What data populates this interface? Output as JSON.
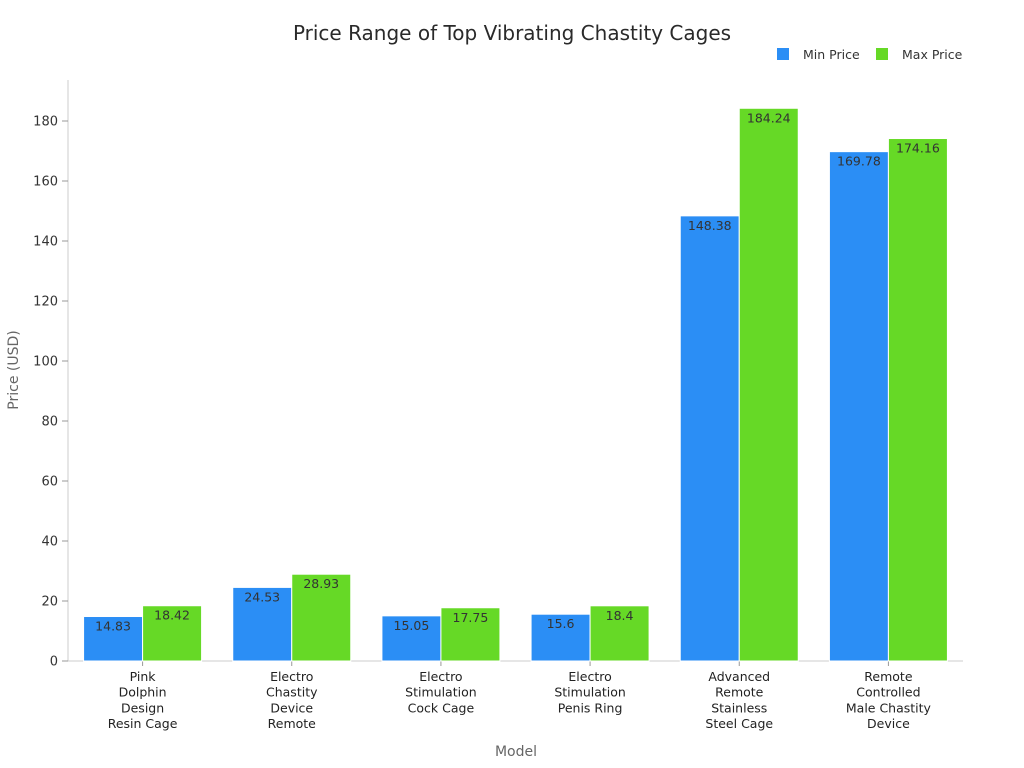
{
  "chart_data": {
    "type": "bar",
    "title": "Price Range of Top Vibrating Chastity Cages",
    "xlabel": "Model",
    "ylabel": "Price (USD)",
    "ylim": [
      0,
      193
    ],
    "yticks": [
      0,
      20,
      40,
      60,
      80,
      100,
      120,
      140,
      160,
      180
    ],
    "legend_position": "top-right",
    "categories": [
      [
        "Pink",
        "Dolphin",
        "Design",
        "Resin Cage"
      ],
      [
        "Electro",
        "Chastity",
        "Device",
        "Remote"
      ],
      [
        "Electro",
        "Stimulation",
        "Cock Cage"
      ],
      [
        "Electro",
        "Stimulation",
        "Penis Ring"
      ],
      [
        "Advanced",
        "Remote",
        "Stainless",
        "Steel Cage"
      ],
      [
        "Remote",
        "Controlled",
        "Male Chastity",
        "Device"
      ]
    ],
    "series": [
      {
        "name": "Min Price",
        "color": "#2b8ef5",
        "values": [
          14.83,
          24.53,
          15.05,
          15.6,
          148.38,
          169.78
        ]
      },
      {
        "name": "Max Price",
        "color": "#66d926",
        "values": [
          18.42,
          28.93,
          17.75,
          18.4,
          184.24,
          174.16
        ]
      }
    ]
  }
}
